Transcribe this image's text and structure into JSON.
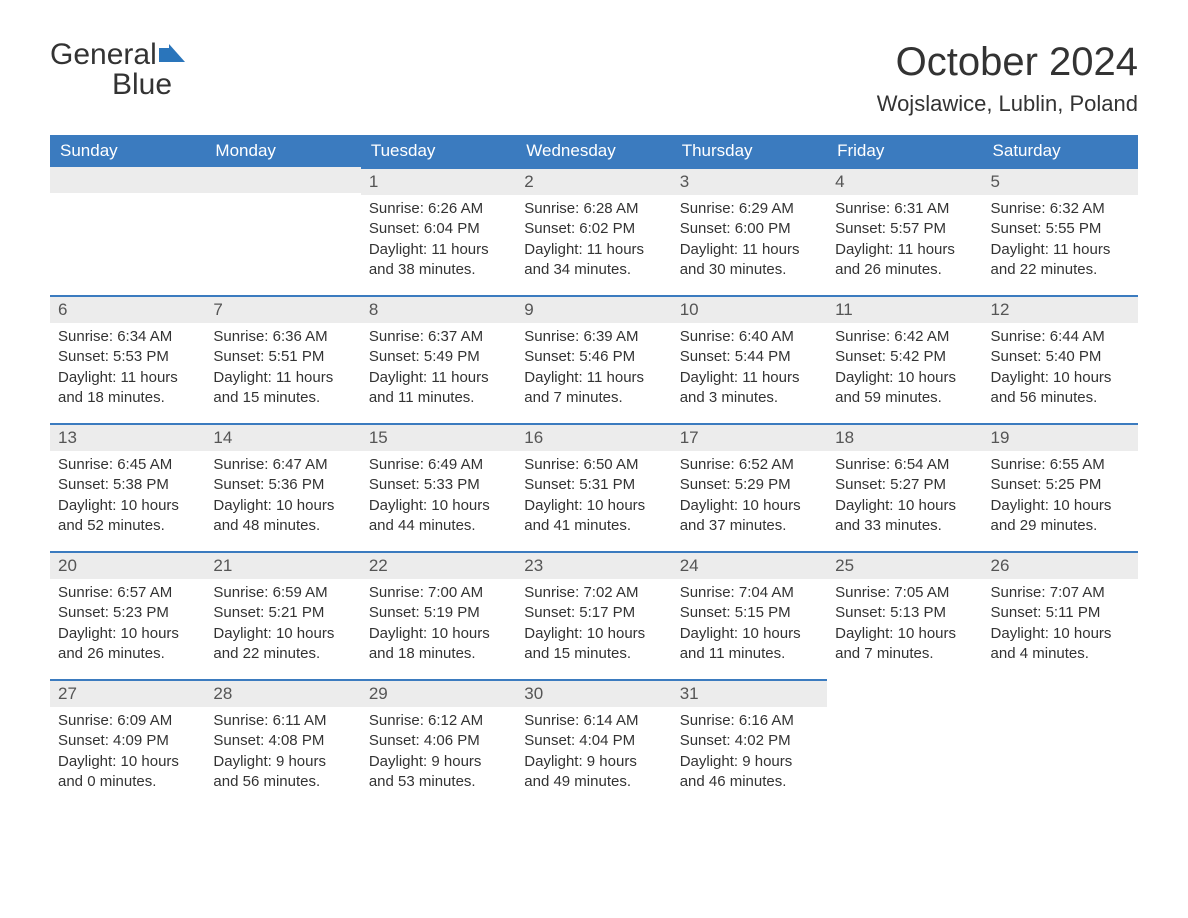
{
  "logo": {
    "word1": "General",
    "word2": "Blue"
  },
  "title": "October 2024",
  "location": "Wojslawice, Lublin, Poland",
  "colors": {
    "header_bg": "#3b7bbf",
    "header_text": "#ffffff",
    "daynum_bg": "#ececec",
    "day_border": "#3b7bbf",
    "body_text": "#333333",
    "logo_blue": "#2a75bb"
  },
  "weekdays": [
    "Sunday",
    "Monday",
    "Tuesday",
    "Wednesday",
    "Thursday",
    "Friday",
    "Saturday"
  ],
  "first_weekday_index": 2,
  "days": [
    {
      "n": 1,
      "sunrise": "6:26 AM",
      "sunset": "6:04 PM",
      "daylight": "11 hours and 38 minutes."
    },
    {
      "n": 2,
      "sunrise": "6:28 AM",
      "sunset": "6:02 PM",
      "daylight": "11 hours and 34 minutes."
    },
    {
      "n": 3,
      "sunrise": "6:29 AM",
      "sunset": "6:00 PM",
      "daylight": "11 hours and 30 minutes."
    },
    {
      "n": 4,
      "sunrise": "6:31 AM",
      "sunset": "5:57 PM",
      "daylight": "11 hours and 26 minutes."
    },
    {
      "n": 5,
      "sunrise": "6:32 AM",
      "sunset": "5:55 PM",
      "daylight": "11 hours and 22 minutes."
    },
    {
      "n": 6,
      "sunrise": "6:34 AM",
      "sunset": "5:53 PM",
      "daylight": "11 hours and 18 minutes."
    },
    {
      "n": 7,
      "sunrise": "6:36 AM",
      "sunset": "5:51 PM",
      "daylight": "11 hours and 15 minutes."
    },
    {
      "n": 8,
      "sunrise": "6:37 AM",
      "sunset": "5:49 PM",
      "daylight": "11 hours and 11 minutes."
    },
    {
      "n": 9,
      "sunrise": "6:39 AM",
      "sunset": "5:46 PM",
      "daylight": "11 hours and 7 minutes."
    },
    {
      "n": 10,
      "sunrise": "6:40 AM",
      "sunset": "5:44 PM",
      "daylight": "11 hours and 3 minutes."
    },
    {
      "n": 11,
      "sunrise": "6:42 AM",
      "sunset": "5:42 PM",
      "daylight": "10 hours and 59 minutes."
    },
    {
      "n": 12,
      "sunrise": "6:44 AM",
      "sunset": "5:40 PM",
      "daylight": "10 hours and 56 minutes."
    },
    {
      "n": 13,
      "sunrise": "6:45 AM",
      "sunset": "5:38 PM",
      "daylight": "10 hours and 52 minutes."
    },
    {
      "n": 14,
      "sunrise": "6:47 AM",
      "sunset": "5:36 PM",
      "daylight": "10 hours and 48 minutes."
    },
    {
      "n": 15,
      "sunrise": "6:49 AM",
      "sunset": "5:33 PM",
      "daylight": "10 hours and 44 minutes."
    },
    {
      "n": 16,
      "sunrise": "6:50 AM",
      "sunset": "5:31 PM",
      "daylight": "10 hours and 41 minutes."
    },
    {
      "n": 17,
      "sunrise": "6:52 AM",
      "sunset": "5:29 PM",
      "daylight": "10 hours and 37 minutes."
    },
    {
      "n": 18,
      "sunrise": "6:54 AM",
      "sunset": "5:27 PM",
      "daylight": "10 hours and 33 minutes."
    },
    {
      "n": 19,
      "sunrise": "6:55 AM",
      "sunset": "5:25 PM",
      "daylight": "10 hours and 29 minutes."
    },
    {
      "n": 20,
      "sunrise": "6:57 AM",
      "sunset": "5:23 PM",
      "daylight": "10 hours and 26 minutes."
    },
    {
      "n": 21,
      "sunrise": "6:59 AM",
      "sunset": "5:21 PM",
      "daylight": "10 hours and 22 minutes."
    },
    {
      "n": 22,
      "sunrise": "7:00 AM",
      "sunset": "5:19 PM",
      "daylight": "10 hours and 18 minutes."
    },
    {
      "n": 23,
      "sunrise": "7:02 AM",
      "sunset": "5:17 PM",
      "daylight": "10 hours and 15 minutes."
    },
    {
      "n": 24,
      "sunrise": "7:04 AM",
      "sunset": "5:15 PM",
      "daylight": "10 hours and 11 minutes."
    },
    {
      "n": 25,
      "sunrise": "7:05 AM",
      "sunset": "5:13 PM",
      "daylight": "10 hours and 7 minutes."
    },
    {
      "n": 26,
      "sunrise": "7:07 AM",
      "sunset": "5:11 PM",
      "daylight": "10 hours and 4 minutes."
    },
    {
      "n": 27,
      "sunrise": "6:09 AM",
      "sunset": "4:09 PM",
      "daylight": "10 hours and 0 minutes."
    },
    {
      "n": 28,
      "sunrise": "6:11 AM",
      "sunset": "4:08 PM",
      "daylight": "9 hours and 56 minutes."
    },
    {
      "n": 29,
      "sunrise": "6:12 AM",
      "sunset": "4:06 PM",
      "daylight": "9 hours and 53 minutes."
    },
    {
      "n": 30,
      "sunrise": "6:14 AM",
      "sunset": "4:04 PM",
      "daylight": "9 hours and 49 minutes."
    },
    {
      "n": 31,
      "sunrise": "6:16 AM",
      "sunset": "4:02 PM",
      "daylight": "9 hours and 46 minutes."
    }
  ],
  "labels": {
    "sunrise": "Sunrise:",
    "sunset": "Sunset:",
    "daylight": "Daylight:"
  }
}
